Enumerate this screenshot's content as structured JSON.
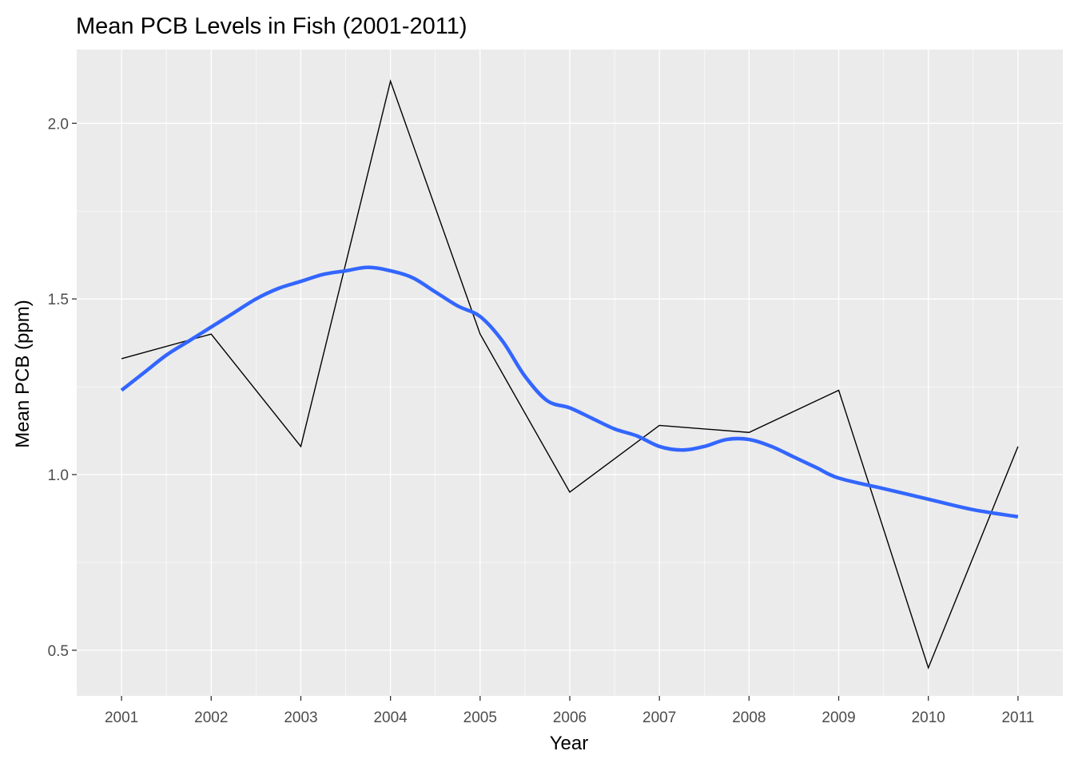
{
  "chart_data": {
    "type": "line",
    "title": "Mean PCB Levels in Fish (2001-2011)",
    "xlabel": "Year",
    "ylabel": "Mean PCB (ppm)",
    "x": [
      2001,
      2002,
      2003,
      2004,
      2005,
      2006,
      2007,
      2008,
      2009,
      2010,
      2011
    ],
    "x_tick_labels": [
      "2001",
      "2002",
      "2003",
      "2004",
      "2005",
      "2006",
      "2007",
      "2008",
      "2009",
      "2010",
      "2011"
    ],
    "y_ticks": [
      0.5,
      1.0,
      1.5,
      2.0
    ],
    "y_tick_labels": [
      "0.5",
      "1.0",
      "1.5",
      "2.0"
    ],
    "xlim": [
      2000.5,
      2011.5
    ],
    "ylim": [
      0.37,
      2.21
    ],
    "grid": true,
    "legend": "none",
    "series": [
      {
        "kind": "observed",
        "color": "#000000",
        "values": [
          1.33,
          1.4,
          1.08,
          2.12,
          1.4,
          0.95,
          1.14,
          1.12,
          1.24,
          0.45,
          1.08
        ]
      },
      {
        "kind": "smoothed-trend",
        "color": "#3366ff",
        "x": [
          2001,
          2001.25,
          2001.5,
          2001.75,
          2002,
          2002.25,
          2002.5,
          2002.75,
          2003,
          2003.25,
          2003.5,
          2003.75,
          2004,
          2004.25,
          2004.5,
          2004.75,
          2005,
          2005.25,
          2005.5,
          2005.75,
          2006,
          2006.25,
          2006.5,
          2006.75,
          2007,
          2007.25,
          2007.5,
          2007.75,
          2008,
          2008.25,
          2008.5,
          2008.75,
          2009,
          2009.5,
          2010,
          2010.5,
          2011
        ],
        "values": [
          1.24,
          1.29,
          1.34,
          1.38,
          1.42,
          1.46,
          1.5,
          1.53,
          1.55,
          1.57,
          1.58,
          1.59,
          1.58,
          1.56,
          1.52,
          1.48,
          1.45,
          1.38,
          1.28,
          1.21,
          1.19,
          1.16,
          1.13,
          1.11,
          1.08,
          1.07,
          1.08,
          1.1,
          1.1,
          1.08,
          1.05,
          1.02,
          0.99,
          0.96,
          0.93,
          0.9,
          0.88
        ]
      }
    ],
    "colors": {
      "panel_background": "#ebebeb",
      "grid_line": "#ffffff",
      "tick_mark": "#333333"
    }
  }
}
